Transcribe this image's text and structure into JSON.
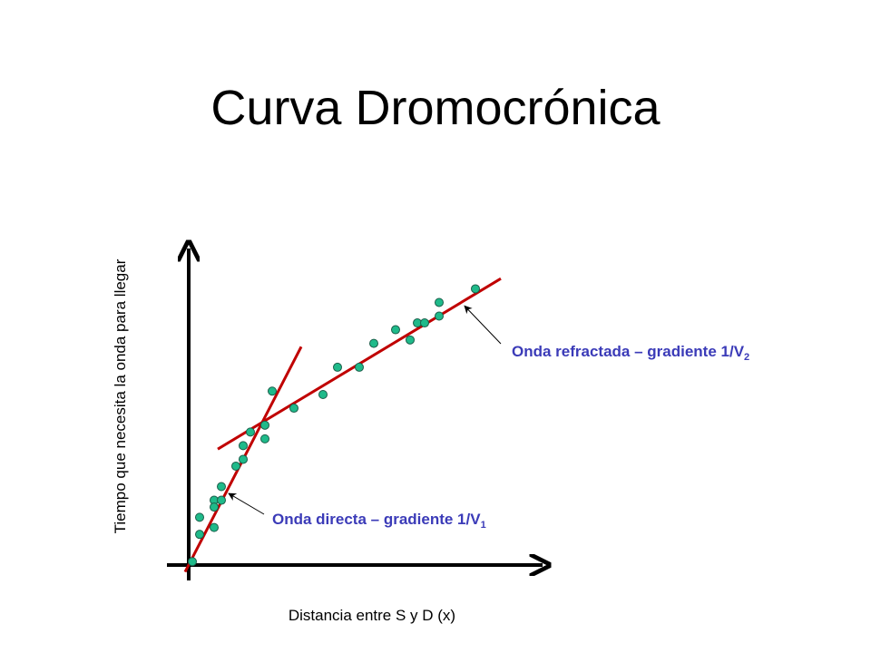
{
  "page": {
    "title": "Curva Dromocrónica"
  },
  "chart_data": {
    "type": "scatter",
    "title": "Curva Dromocrónica",
    "xlabel": "Distancia entre S y D (x)",
    "ylabel": "Tiempo que necesita la onda para llegar",
    "grid": false,
    "legend": "none",
    "ticks": "none",
    "xlim": [
      0,
      100
    ],
    "ylim": [
      0,
      100
    ],
    "points": [
      {
        "x": 1,
        "y": 1
      },
      {
        "x": 3,
        "y": 9
      },
      {
        "x": 3,
        "y": 14
      },
      {
        "x": 7,
        "y": 11
      },
      {
        "x": 7,
        "y": 19
      },
      {
        "x": 7,
        "y": 17
      },
      {
        "x": 9,
        "y": 19
      },
      {
        "x": 9,
        "y": 23
      },
      {
        "x": 13,
        "y": 29
      },
      {
        "x": 15,
        "y": 31
      },
      {
        "x": 15,
        "y": 35
      },
      {
        "x": 17,
        "y": 39
      },
      {
        "x": 21,
        "y": 41
      },
      {
        "x": 21,
        "y": 37
      },
      {
        "x": 23,
        "y": 51
      },
      {
        "x": 29,
        "y": 46
      },
      {
        "x": 37,
        "y": 50
      },
      {
        "x": 41,
        "y": 58
      },
      {
        "x": 47,
        "y": 58
      },
      {
        "x": 51,
        "y": 65
      },
      {
        "x": 57,
        "y": 69
      },
      {
        "x": 61,
        "y": 66
      },
      {
        "x": 63,
        "y": 71
      },
      {
        "x": 65,
        "y": 71
      },
      {
        "x": 69,
        "y": 73
      },
      {
        "x": 69,
        "y": 77
      },
      {
        "x": 79,
        "y": 81
      }
    ],
    "lines": [
      {
        "name": "directa",
        "from": {
          "x": -1,
          "y": -2
        },
        "to": {
          "x": 31,
          "y": 64
        }
      },
      {
        "name": "refractada",
        "from": {
          "x": 8,
          "y": 34
        },
        "to": {
          "x": 86,
          "y": 84
        }
      }
    ],
    "annotations": [
      {
        "text": "Onda refractada – gradiente 1/V",
        "sub": "2",
        "arrow_to": {
          "x": 76,
          "y": 76
        }
      },
      {
        "text": "Onda directa – gradiente 1/V",
        "sub": "1",
        "arrow_to": {
          "x": 11,
          "y": 21
        }
      }
    ],
    "colors": {
      "point_fill": "#1fba8a",
      "point_stroke": "#1b5e4a",
      "fit_line": "#c00000",
      "axis": "#000000",
      "annotation_text": "#3b3bb8"
    }
  }
}
